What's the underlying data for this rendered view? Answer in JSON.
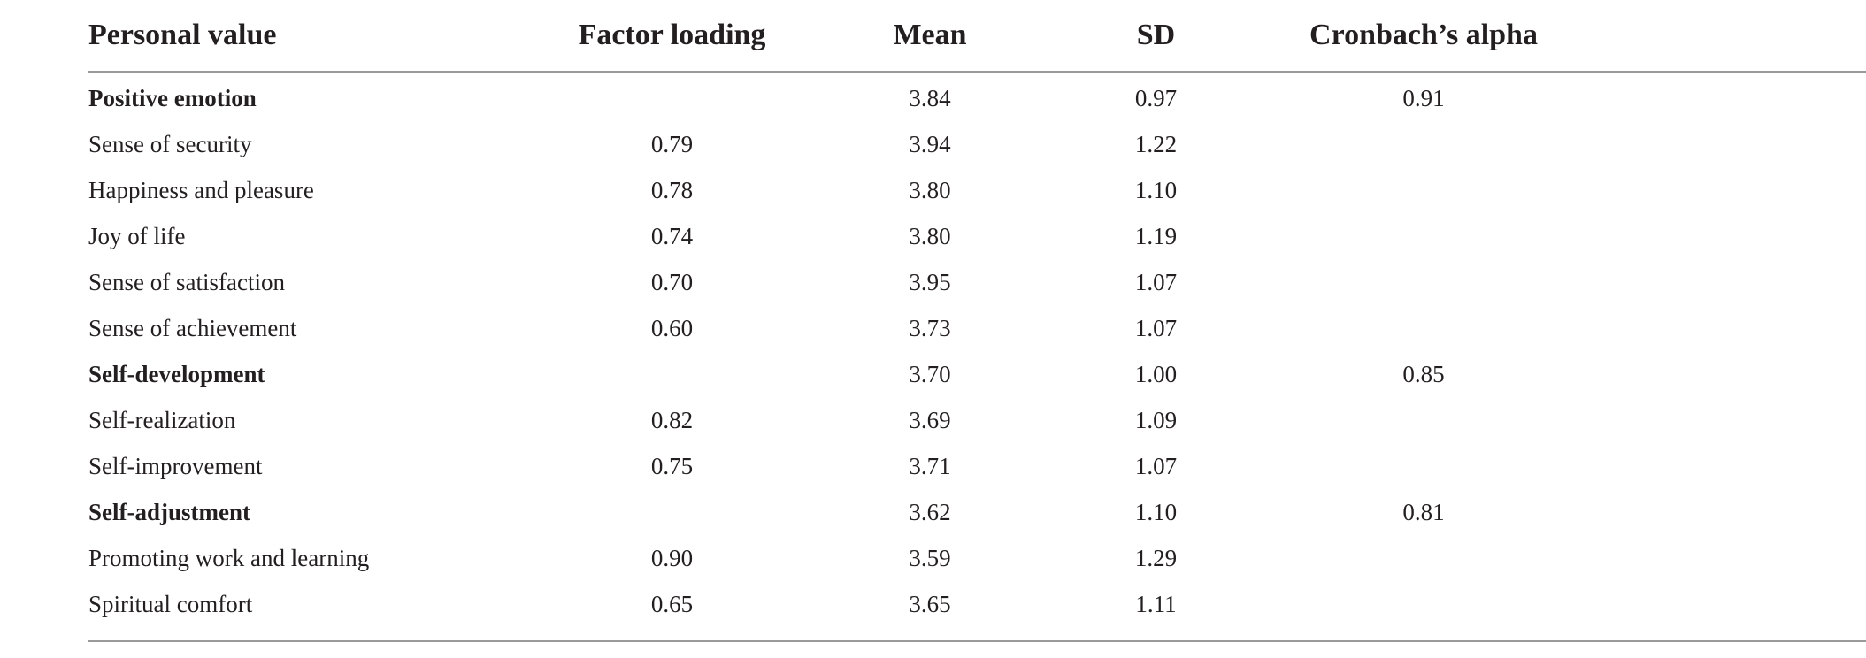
{
  "table": {
    "headers": {
      "name": "Personal value",
      "factor": "Factor loading",
      "mean": "Mean",
      "sd": "SD",
      "alpha": "Cronbach’s alpha"
    },
    "rows": [
      {
        "name": "Positive emotion",
        "factor": "",
        "mean": "3.84",
        "sd": "0.97",
        "alpha": "0.91",
        "group": true
      },
      {
        "name": "Sense of security",
        "factor": "0.79",
        "mean": "3.94",
        "sd": "1.22",
        "alpha": ""
      },
      {
        "name": "Happiness and pleasure",
        "factor": "0.78",
        "mean": "3.80",
        "sd": "1.10",
        "alpha": ""
      },
      {
        "name": "Joy of life",
        "factor": "0.74",
        "mean": "3.80",
        "sd": "1.19",
        "alpha": ""
      },
      {
        "name": "Sense of satisfaction",
        "factor": "0.70",
        "mean": "3.95",
        "sd": "1.07",
        "alpha": ""
      },
      {
        "name": "Sense of achievement",
        "factor": "0.60",
        "mean": "3.73",
        "sd": "1.07",
        "alpha": ""
      },
      {
        "name": "Self-development",
        "factor": "",
        "mean": "3.70",
        "sd": "1.00",
        "alpha": "0.85",
        "group": true
      },
      {
        "name": "Self-realization",
        "factor": "0.82",
        "mean": "3.69",
        "sd": "1.09",
        "alpha": ""
      },
      {
        "name": "Self-improvement",
        "factor": "0.75",
        "mean": "3.71",
        "sd": "1.07",
        "alpha": ""
      },
      {
        "name": "Self-adjustment",
        "factor": "",
        "mean": "3.62",
        "sd": "1.10",
        "alpha": "0.81",
        "group": true
      },
      {
        "name": "Promoting work and learning",
        "factor": "0.90",
        "mean": "3.59",
        "sd": "1.29",
        "alpha": ""
      },
      {
        "name": "Spiritual comfort",
        "factor": "0.65",
        "mean": "3.65",
        "sd": "1.11",
        "alpha": ""
      }
    ]
  }
}
